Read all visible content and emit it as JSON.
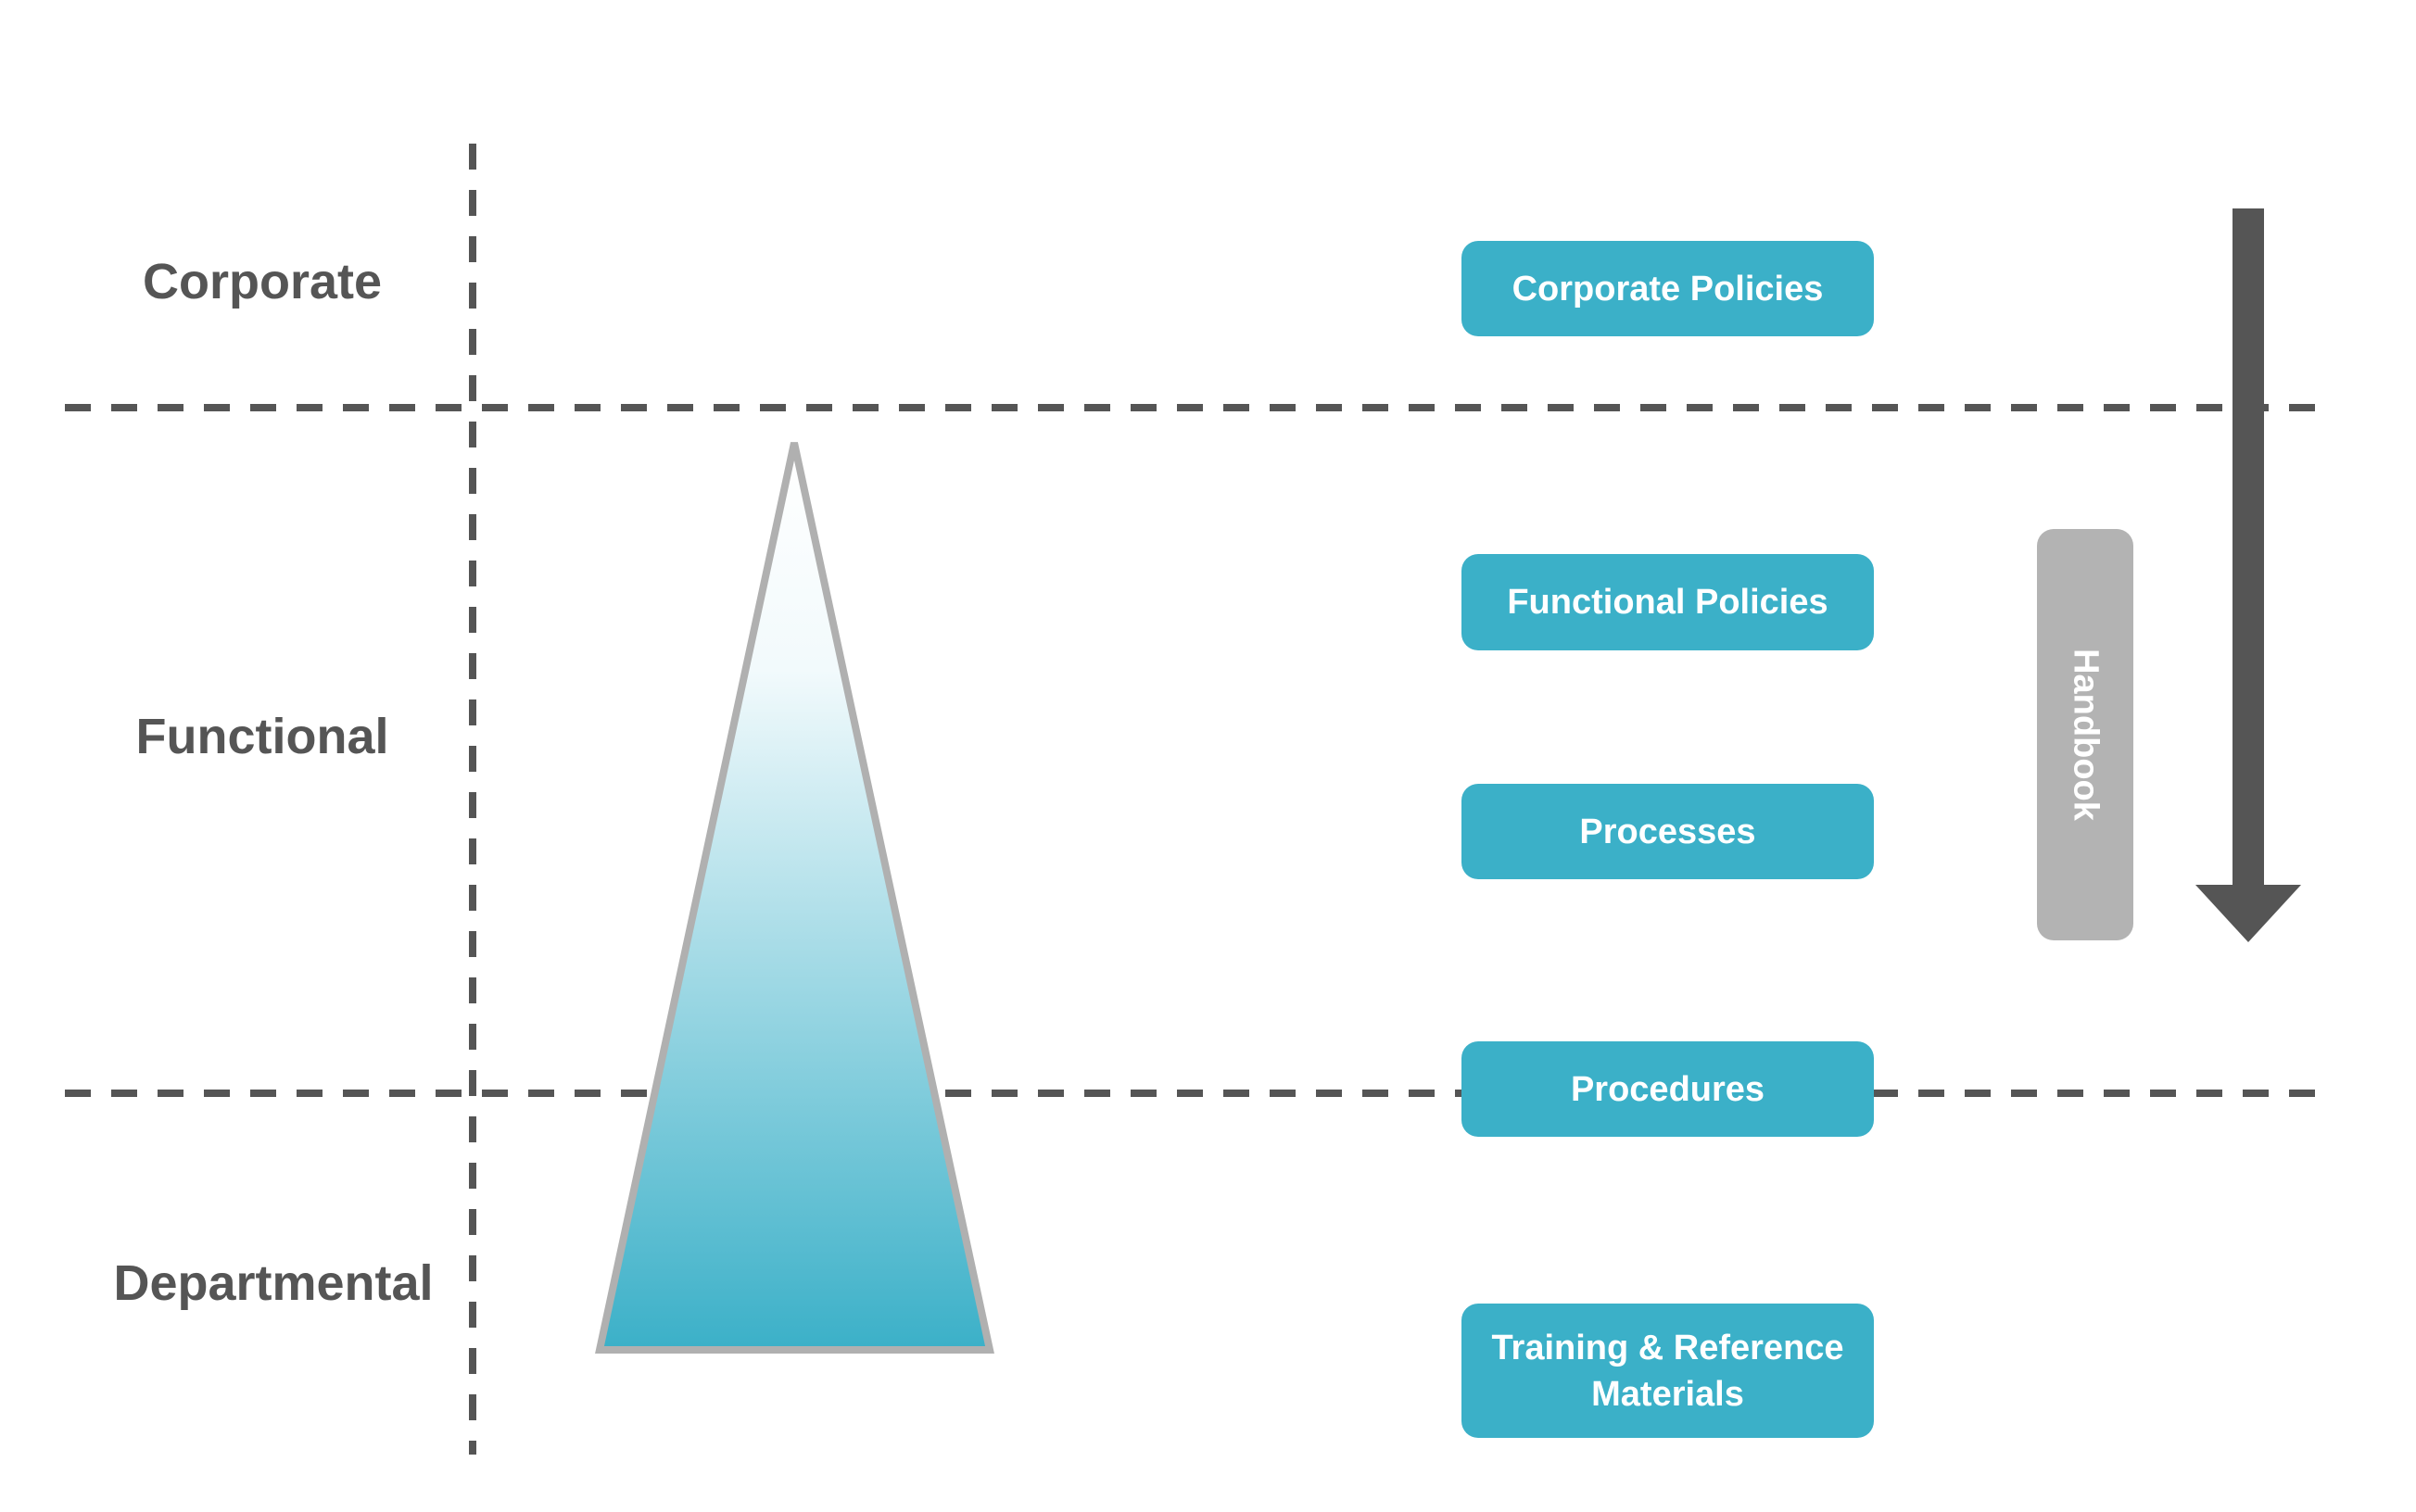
{
  "levels": {
    "corporate": "Corporate",
    "functional": "Functional",
    "departmental": "Departmental"
  },
  "documents": [
    "Corporate Policies",
    "Functional Policies",
    "Processes",
    "Procedures",
    "Training & Reference Materials"
  ],
  "handbook": "Handbook",
  "colors": {
    "accent": "#3BB0C8",
    "dashed_lines": "#555555",
    "handbook_bar": "#B3B3B3",
    "triangle_outline": "#B0B0B0",
    "label_text": "#555555"
  },
  "icons": {
    "hierarchy_triangle": "triangle-gradient-icon",
    "direction_arrow": "arrow-down-icon"
  }
}
